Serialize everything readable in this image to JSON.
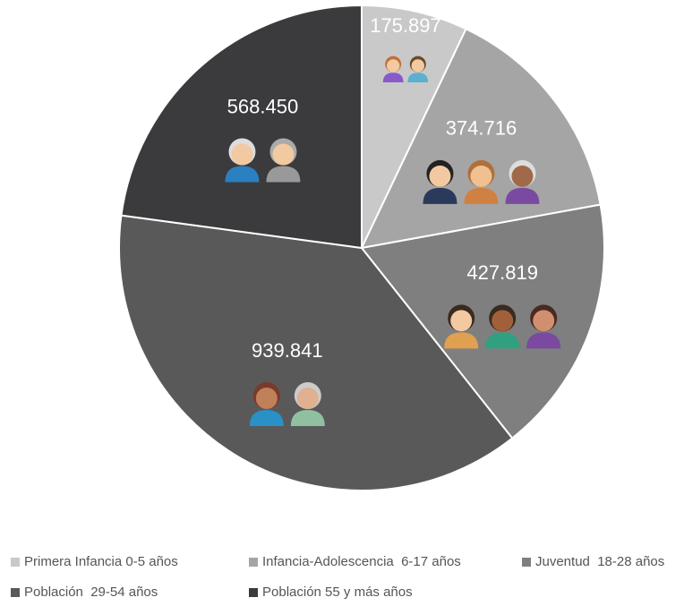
{
  "chart_data": {
    "type": "pie",
    "categories": [
      "Primera Infancia 0-5 años",
      "Infancia-Adolescencia  6-17 años",
      "Juventud  18-28 años",
      "Población  29-54 años",
      "Población 55 y más años"
    ],
    "values": [
      175897,
      374716,
      427819,
      939841,
      568450
    ],
    "value_labels": [
      "175.897",
      "374.716",
      "427.819",
      "939.841",
      "568.450"
    ],
    "colors": [
      "#c9c9c9",
      "#a5a5a5",
      "#7f7f7f",
      "#595959",
      "#3b3b3d"
    ],
    "legend": "bottom"
  }
}
